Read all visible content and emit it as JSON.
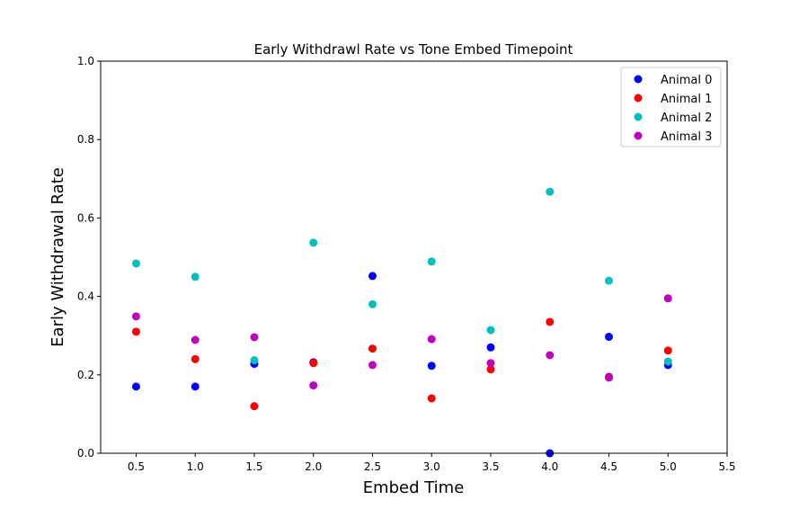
{
  "chart_data": {
    "type": "scatter",
    "title": "Early Withdrawl Rate vs Tone Embed Timepoint",
    "xlabel": "Embed Time",
    "ylabel": "Early Withdrawal Rate",
    "xlim": [
      0.2,
      5.5
    ],
    "ylim": [
      0.0,
      1.0
    ],
    "xticks": [
      0.5,
      1.0,
      1.5,
      2.0,
      2.5,
      3.0,
      3.5,
      4.0,
      4.5,
      5.0,
      5.5
    ],
    "yticks": [
      0.0,
      0.2,
      0.4,
      0.6,
      0.8,
      1.0
    ],
    "xtick_labels": [
      "0.5",
      "1.0",
      "1.5",
      "2.0",
      "2.5",
      "3.0",
      "3.5",
      "4.0",
      "4.5",
      "5.0",
      "5.5"
    ],
    "ytick_labels": [
      "0.0",
      "0.2",
      "0.4",
      "0.6",
      "0.8",
      "1.0"
    ],
    "grid": false,
    "legend_position": "top-right",
    "x": [
      0.5,
      1.0,
      1.5,
      2.0,
      2.5,
      3.0,
      3.5,
      4.0,
      4.5,
      5.0
    ],
    "series": [
      {
        "name": "Animal 0",
        "color": "#0000ff",
        "values": [
          0.17,
          0.17,
          0.228,
          0.232,
          0.452,
          0.223,
          0.27,
          0.0,
          0.297,
          0.225
        ]
      },
      {
        "name": "Animal 1",
        "color": "#ff0000",
        "values": [
          0.31,
          0.24,
          0.12,
          0.23,
          0.267,
          0.14,
          0.214,
          0.335,
          0.195,
          0.262
        ]
      },
      {
        "name": "Animal 2",
        "color": "#00bfbf",
        "values": [
          0.484,
          0.45,
          0.237,
          0.537,
          0.38,
          0.489,
          0.314,
          0.667,
          0.44,
          0.234
        ]
      },
      {
        "name": "Animal 3",
        "color": "#bf00bf",
        "values": [
          0.349,
          0.289,
          0.296,
          0.173,
          0.225,
          0.291,
          0.23,
          0.25,
          0.193,
          0.395
        ]
      }
    ]
  }
}
